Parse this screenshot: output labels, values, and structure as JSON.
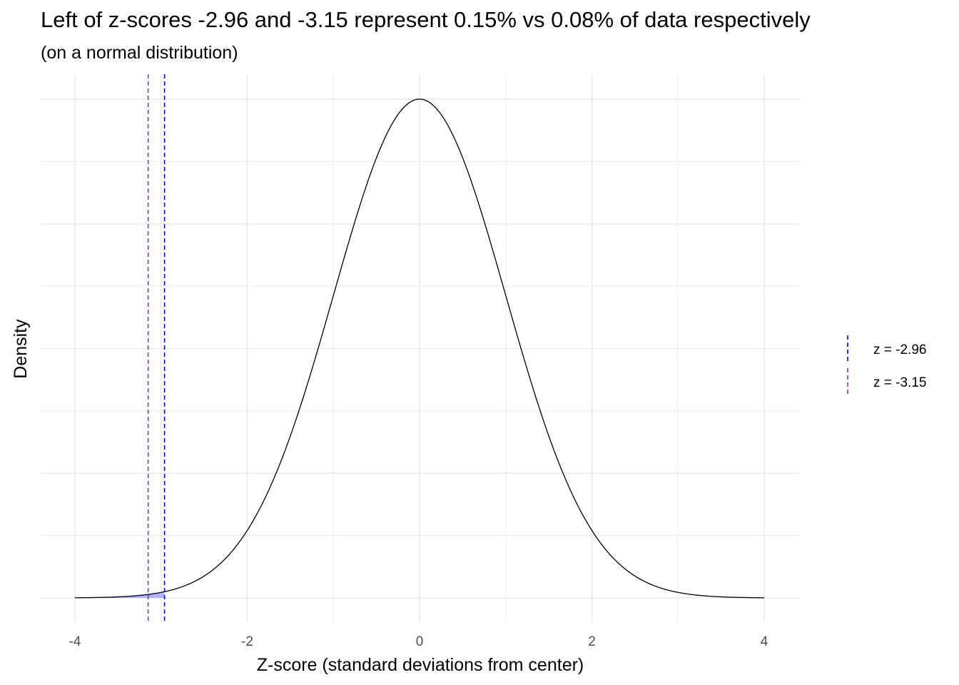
{
  "chart_data": {
    "type": "line",
    "title": "Left of z-scores -2.96 and -3.15 represent 0.15% vs 0.08% of data respectively",
    "subtitle": "(on a normal distribution)",
    "xlabel": "Z-score (standard deviations from center)",
    "ylabel": "Density",
    "xlim": [
      -4,
      4
    ],
    "ylim": [
      0,
      0.3989
    ],
    "x_ticks": [
      -4,
      -2,
      0,
      2,
      4
    ],
    "x_tick_labels": [
      "-4",
      "-2",
      "0",
      "2",
      "4"
    ],
    "y_tick_labels_shown": false,
    "grid": true,
    "curve": {
      "distribution": "standard normal",
      "mean": 0,
      "sd": 1,
      "color": "#000000"
    },
    "shaded_region": {
      "from": -4,
      "to": -2.96,
      "color": "#b3b3ff"
    },
    "vlines": [
      {
        "name": "z = -2.96",
        "x": -2.96,
        "color": "#0000ff",
        "style": "dashed"
      },
      {
        "name": "z = -3.15",
        "x": -3.15,
        "color": "#8a2be2",
        "style": "dashed"
      }
    ],
    "legend": {
      "position": "right",
      "entries": [
        "z = -2.96",
        "z = -3.15"
      ]
    }
  }
}
